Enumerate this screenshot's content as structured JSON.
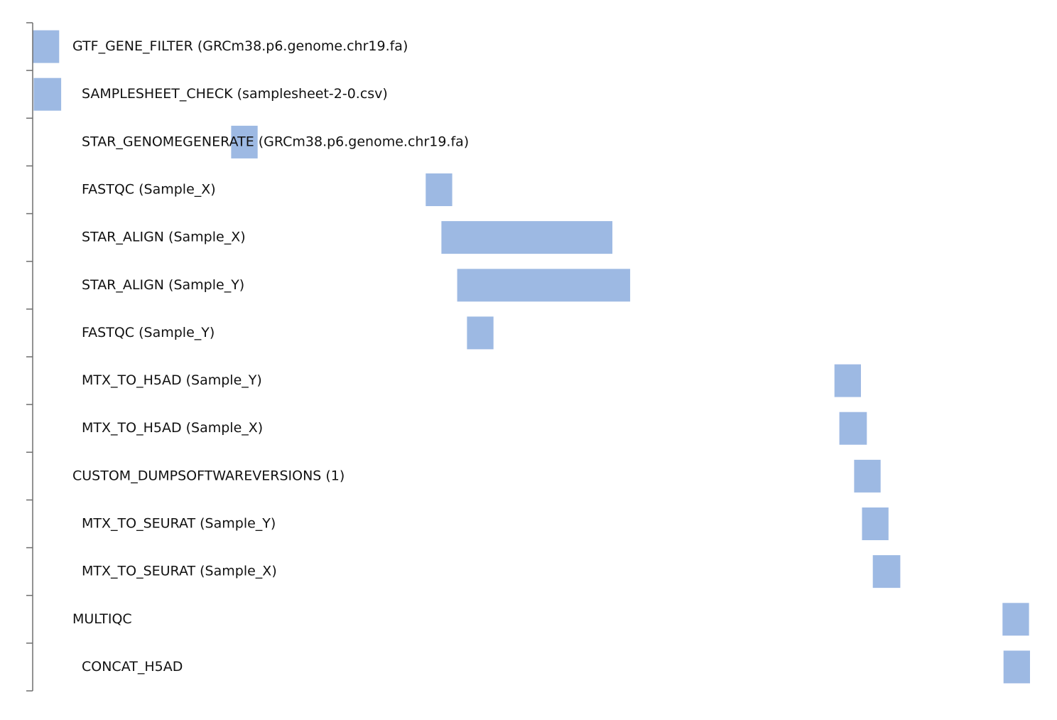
{
  "chart_data": {
    "type": "bar",
    "orientation": "horizontal-timeline",
    "title": "",
    "xlabel": "",
    "ylabel": "",
    "bar_color": "#9db9e3",
    "xlim": [
      0,
      1000
    ],
    "grid": false,
    "legend": "none",
    "tasks": [
      {
        "label": "GTF_GENE_FILTER (GRCm38.p6.genome.chr19.fa)",
        "indent": 0,
        "start": 0,
        "end": 27
      },
      {
        "label": "SAMPLESHEET_CHECK (samplesheet-2-0.csv)",
        "indent": 1,
        "start": 1,
        "end": 29
      },
      {
        "label": "STAR_GENOMEGENERATE (GRCm38.p6.genome.chr19.fa)",
        "indent": 1,
        "start": 202,
        "end": 229
      },
      {
        "label": "FASTQC (Sample_X)",
        "indent": 1,
        "start": 400,
        "end": 427
      },
      {
        "label": "STAR_ALIGN (Sample_X)",
        "indent": 1,
        "start": 416,
        "end": 590
      },
      {
        "label": "STAR_ALIGN (Sample_Y)",
        "indent": 1,
        "start": 432,
        "end": 608
      },
      {
        "label": "FASTQC (Sample_Y)",
        "indent": 1,
        "start": 442,
        "end": 469
      },
      {
        "label": "MTX_TO_H5AD (Sample_Y)",
        "indent": 1,
        "start": 816,
        "end": 843
      },
      {
        "label": "MTX_TO_H5AD (Sample_X)",
        "indent": 1,
        "start": 821,
        "end": 849
      },
      {
        "label": "CUSTOM_DUMPSOFTWAREVERSIONS (1)",
        "indent": 0,
        "start": 836,
        "end": 863
      },
      {
        "label": "MTX_TO_SEURAT (Sample_Y)",
        "indent": 1,
        "start": 844,
        "end": 871
      },
      {
        "label": "MTX_TO_SEURAT (Sample_X)",
        "indent": 1,
        "start": 855,
        "end": 883
      },
      {
        "label": "MULTIQC",
        "indent": 0,
        "start": 987,
        "end": 1014
      },
      {
        "label": "CONCAT_H5AD",
        "indent": 1,
        "start": 988,
        "end": 1015
      }
    ]
  }
}
